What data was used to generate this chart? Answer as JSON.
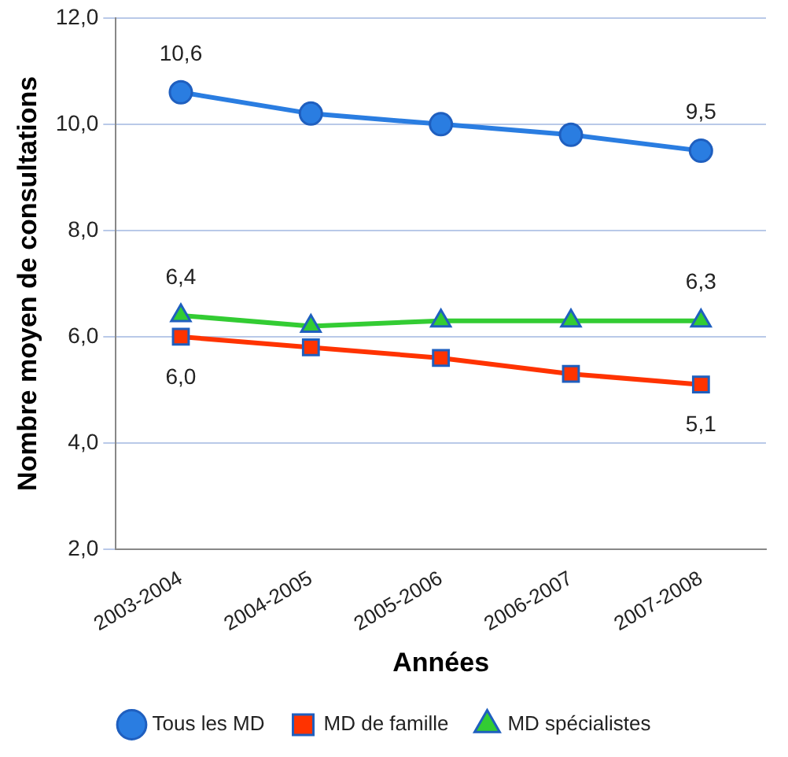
{
  "chart_data": {
    "type": "line",
    "xlabel": "Années",
    "ylabel": "Nombre moyen de consultations",
    "categories": [
      "2003-2004",
      "2004-2005",
      "2005-2006",
      "2006-2007",
      "2007-2008"
    ],
    "series": [
      {
        "name": "Tous les MD",
        "color": "#2a7de1",
        "marker": "circle",
        "values": [
          10.6,
          10.2,
          10.0,
          9.8,
          9.5
        ],
        "value_labels": [
          "10,6",
          null,
          null,
          null,
          "9,5"
        ]
      },
      {
        "name": "MD de famille",
        "color": "#ff3300",
        "marker": "square",
        "values": [
          6.0,
          5.8,
          5.6,
          5.3,
          5.1
        ],
        "value_labels": [
          "6,0",
          null,
          null,
          null,
          "5,1"
        ]
      },
      {
        "name": "MD spécialistes",
        "color": "#33cc33",
        "marker": "triangle",
        "values": [
          6.4,
          6.2,
          6.3,
          6.3,
          6.3
        ],
        "value_labels": [
          "6,4",
          null,
          null,
          null,
          "6,3"
        ]
      }
    ],
    "ylim": [
      2,
      12
    ],
    "yticks": [
      {
        "value": 2,
        "label": "2,0"
      },
      {
        "value": 4,
        "label": "4,0"
      },
      {
        "value": 6,
        "label": "6,0"
      },
      {
        "value": 8,
        "label": "8,0"
      },
      {
        "value": 10,
        "label": "10,0"
      },
      {
        "value": 12,
        "label": "12,0"
      }
    ],
    "grid": "y",
    "legend": "bottom"
  }
}
